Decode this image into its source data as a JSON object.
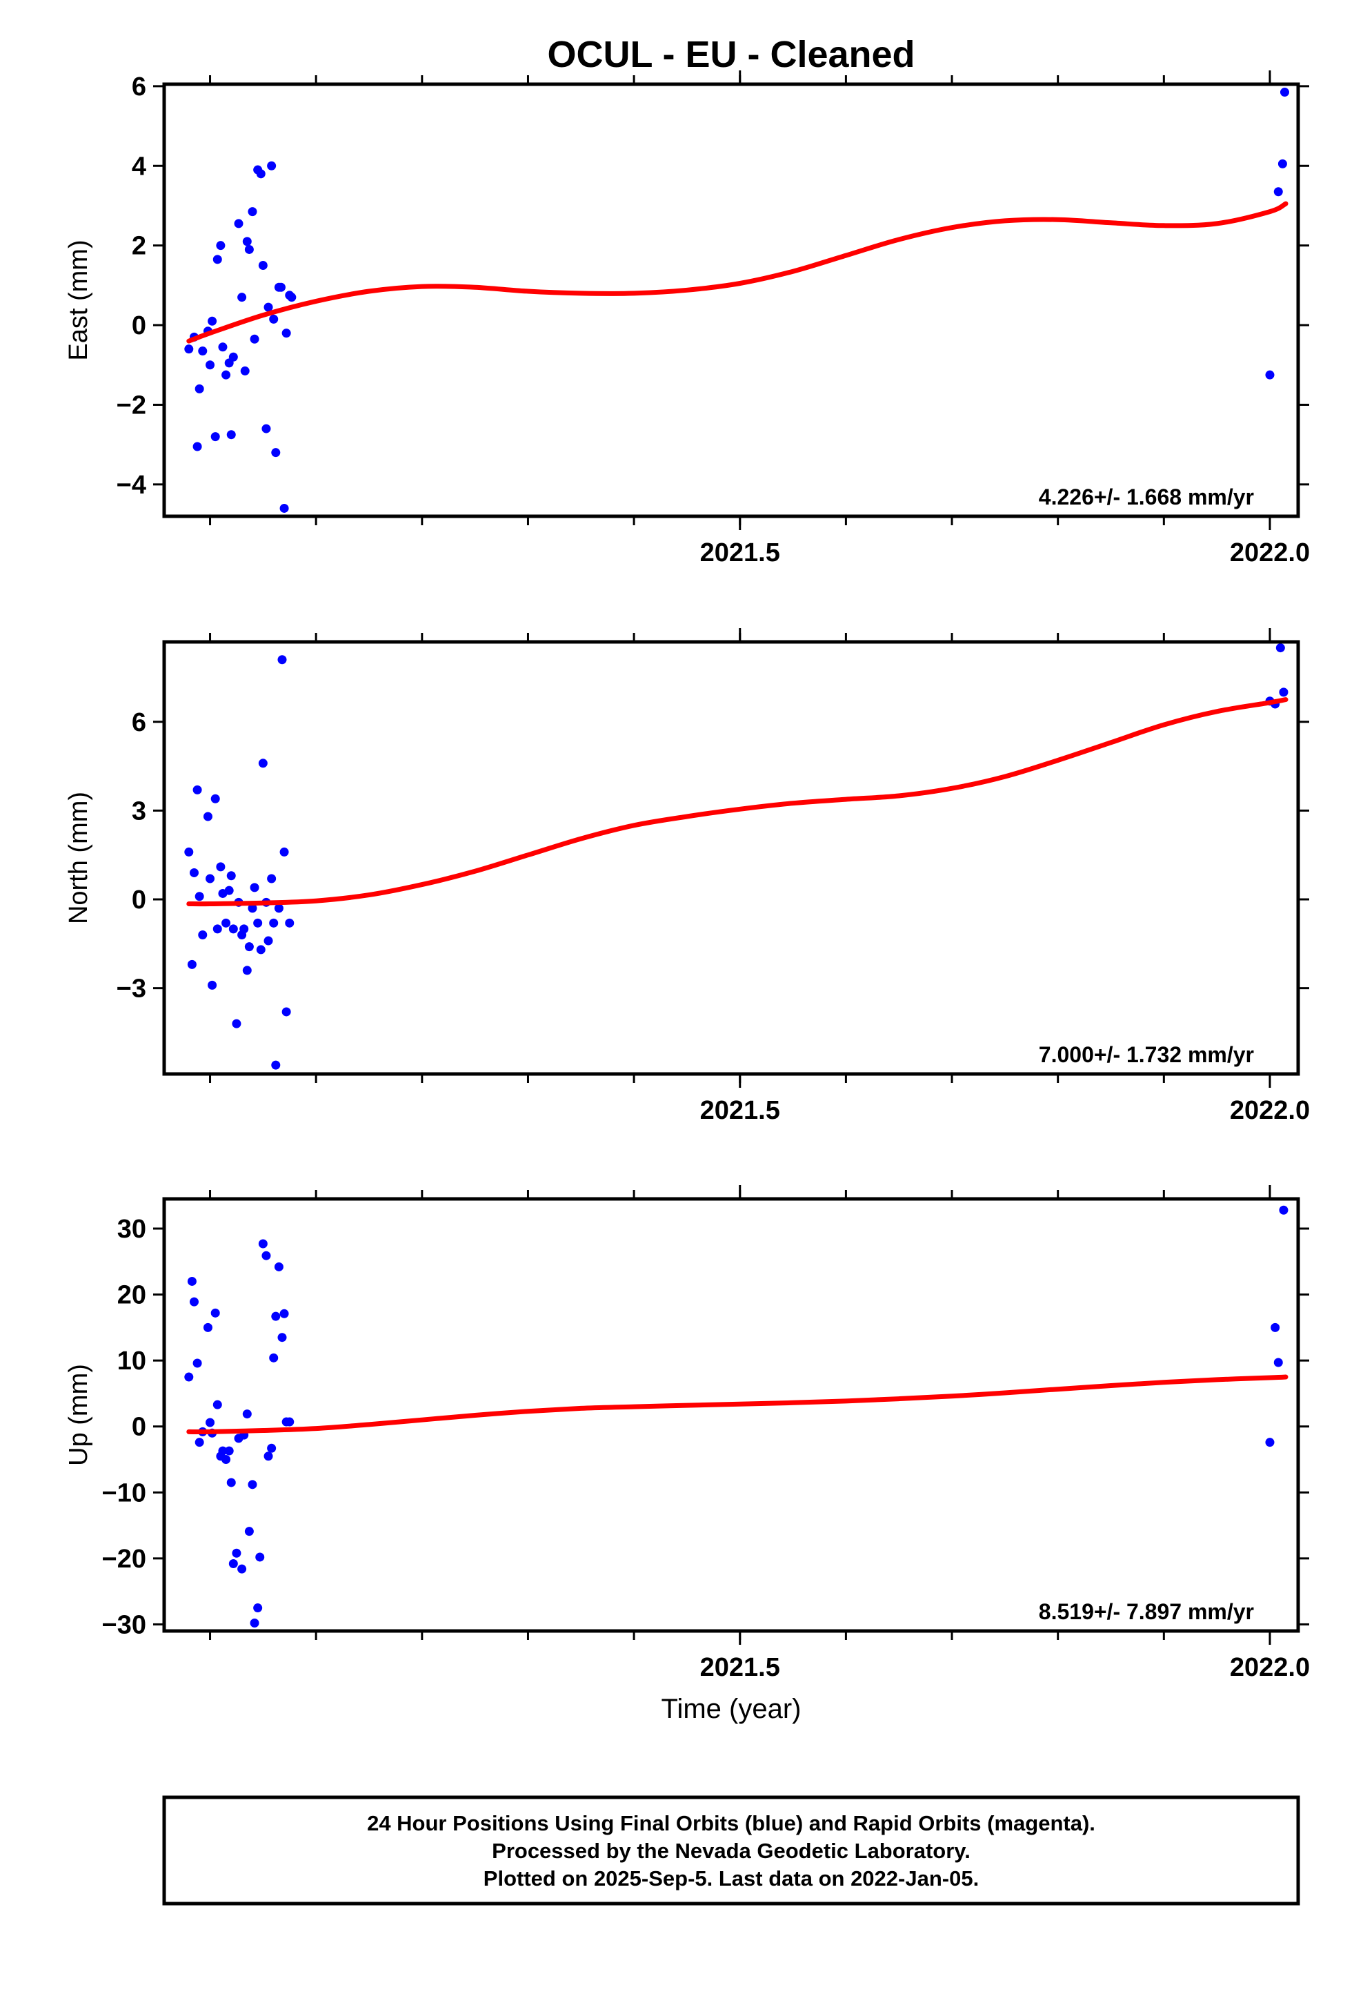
{
  "chart_data": {
    "type": "scatter",
    "title": "OCUL  - EU - Cleaned",
    "xlabel": "Time (year)",
    "xlim": [
      2020.9567,
      2022.0267
    ],
    "x_ticks": [
      2021.5,
      2022.0
    ],
    "x_tick_labels": [
      "2021.5",
      "2022.0"
    ],
    "x_minor_ticks": [
      2021.0,
      2021.1,
      2021.2,
      2021.3,
      2021.4,
      2021.5,
      2021.6,
      2021.7,
      2021.8,
      2021.9,
      2022.0
    ],
    "grid": false,
    "point_color": "#0000ff",
    "fit_color": "#ff0000",
    "panels": [
      {
        "name": "east",
        "ylabel": "East (mm)",
        "ylim": [
          -4.8,
          6.05
        ],
        "y_ticks": [
          -4,
          -2,
          0,
          2,
          4,
          6
        ],
        "y_tick_labels": [
          "−4",
          "−2",
          "0",
          "2",
          "4",
          "6"
        ],
        "rate_label": "4.226+/- 1.668 mm/yr",
        "fit": {
          "x": [
            2020.98,
            2021.0,
            2021.05,
            2021.1,
            2021.15,
            2021.2,
            2021.25,
            2021.3,
            2021.35,
            2021.4,
            2021.45,
            2021.5,
            2021.55,
            2021.6,
            2021.65,
            2021.7,
            2021.75,
            2021.8,
            2021.85,
            2021.9,
            2021.95,
            2022.0,
            2022.015
          ],
          "y": [
            -0.4,
            -0.2,
            0.25,
            0.6,
            0.85,
            0.97,
            0.95,
            0.85,
            0.8,
            0.8,
            0.88,
            1.05,
            1.35,
            1.75,
            2.15,
            2.45,
            2.62,
            2.65,
            2.57,
            2.5,
            2.55,
            2.85,
            3.05
          ]
        },
        "points": {
          "x": [
            2020.98,
            2020.985,
            2020.988,
            2020.99,
            2020.993,
            2020.998,
            2021.0,
            2021.002,
            2021.005,
            2021.007,
            2021.01,
            2021.012,
            2021.015,
            2021.018,
            2021.02,
            2021.022,
            2021.027,
            2021.03,
            2021.033,
            2021.035,
            2021.037,
            2021.04,
            2021.042,
            2021.045,
            2021.048,
            2021.05,
            2021.053,
            2021.055,
            2021.058,
            2021.06,
            2021.062,
            2021.065,
            2021.067,
            2021.07,
            2021.072,
            2021.075,
            2021.077,
            2022.0,
            2022.008,
            2022.012,
            2022.014
          ],
          "y": [
            -0.6,
            -0.3,
            -3.05,
            -1.6,
            -0.65,
            -0.15,
            -1.0,
            0.1,
            -2.8,
            1.65,
            2.0,
            -0.55,
            -1.25,
            -0.95,
            -2.75,
            -0.8,
            2.55,
            0.7,
            -1.15,
            2.1,
            1.9,
            2.85,
            -0.35,
            3.9,
            3.8,
            1.5,
            -2.6,
            0.45,
            4.0,
            0.15,
            -3.2,
            0.95,
            0.95,
            -4.6,
            -0.2,
            0.75,
            0.7,
            -1.25,
            3.35,
            4.05,
            5.85
          ]
        }
      },
      {
        "name": "north",
        "ylabel": "North (mm)",
        "ylim": [
          -5.9,
          8.7
        ],
        "y_ticks": [
          -3,
          0,
          3,
          6
        ],
        "y_tick_labels": [
          "−3",
          "0",
          "3",
          "6"
        ],
        "rate_label": "7.000+/- 1.732 mm/yr",
        "fit": {
          "x": [
            2020.98,
            2021.0,
            2021.05,
            2021.1,
            2021.15,
            2021.2,
            2021.25,
            2021.3,
            2021.35,
            2021.4,
            2021.45,
            2021.5,
            2021.55,
            2021.6,
            2021.65,
            2021.7,
            2021.75,
            2021.8,
            2021.85,
            2021.9,
            2021.95,
            2022.0,
            2022.015
          ],
          "y": [
            -0.15,
            -0.15,
            -0.12,
            -0.05,
            0.15,
            0.5,
            0.95,
            1.5,
            2.05,
            2.5,
            2.8,
            3.05,
            3.25,
            3.38,
            3.5,
            3.75,
            4.15,
            4.7,
            5.3,
            5.9,
            6.35,
            6.65,
            6.75
          ]
        },
        "points": {
          "x": [
            2020.98,
            2020.983,
            2020.985,
            2020.988,
            2020.99,
            2020.993,
            2020.998,
            2021.0,
            2021.002,
            2021.005,
            2021.007,
            2021.01,
            2021.012,
            2021.015,
            2021.018,
            2021.02,
            2021.022,
            2021.025,
            2021.027,
            2021.03,
            2021.032,
            2021.035,
            2021.037,
            2021.04,
            2021.042,
            2021.045,
            2021.048,
            2021.05,
            2021.053,
            2021.055,
            2021.058,
            2021.06,
            2021.062,
            2021.065,
            2021.068,
            2021.07,
            2021.072,
            2021.075,
            2022.0,
            2022.005,
            2022.01,
            2022.013
          ],
          "y": [
            1.6,
            -2.2,
            0.9,
            3.7,
            0.1,
            -1.2,
            2.8,
            0.7,
            -2.9,
            3.4,
            -1.0,
            1.1,
            0.2,
            -0.8,
            0.3,
            0.8,
            -1.0,
            -4.2,
            -0.1,
            -1.2,
            -1.0,
            -2.4,
            -1.6,
            -0.3,
            0.4,
            -0.8,
            -1.7,
            4.6,
            -0.1,
            -1.4,
            0.7,
            -0.8,
            -5.6,
            -0.3,
            8.1,
            1.6,
            -3.8,
            -0.8,
            6.7,
            6.6,
            8.5,
            7.0
          ]
        }
      },
      {
        "name": "up",
        "ylabel": "Up (mm)",
        "ylim": [
          -31,
          34.5
        ],
        "y_ticks": [
          -30,
          -20,
          -10,
          0,
          10,
          20,
          30
        ],
        "y_tick_labels": [
          "−30",
          "−20",
          "−10",
          "0",
          "10",
          "20",
          "30"
        ],
        "rate_label": "8.519+/- 7.897 mm/yr",
        "fit": {
          "x": [
            2020.98,
            2021.0,
            2021.05,
            2021.1,
            2021.15,
            2021.2,
            2021.25,
            2021.3,
            2021.35,
            2021.4,
            2021.45,
            2021.5,
            2021.55,
            2021.6,
            2021.65,
            2021.7,
            2021.75,
            2021.8,
            2021.85,
            2021.9,
            2021.95,
            2022.0,
            2022.015
          ],
          "y": [
            -0.8,
            -0.8,
            -0.6,
            -0.3,
            0.3,
            1.0,
            1.7,
            2.3,
            2.75,
            3.0,
            3.2,
            3.4,
            3.6,
            3.85,
            4.2,
            4.6,
            5.1,
            5.65,
            6.2,
            6.7,
            7.1,
            7.4,
            7.5
          ]
        },
        "points": {
          "x": [
            2020.98,
            2020.983,
            2020.985,
            2020.988,
            2020.99,
            2020.993,
            2020.998,
            2021.0,
            2021.002,
            2021.005,
            2021.007,
            2021.01,
            2021.012,
            2021.015,
            2021.018,
            2021.02,
            2021.022,
            2021.025,
            2021.027,
            2021.03,
            2021.032,
            2021.035,
            2021.037,
            2021.04,
            2021.042,
            2021.045,
            2021.047,
            2021.05,
            2021.053,
            2021.055,
            2021.058,
            2021.06,
            2021.062,
            2021.065,
            2021.068,
            2021.07,
            2021.072,
            2021.075,
            2022.0,
            2022.005,
            2022.008,
            2022.013
          ],
          "y": [
            7.5,
            22.0,
            18.9,
            9.6,
            -2.4,
            -0.8,
            15.0,
            0.6,
            -1.0,
            17.2,
            3.3,
            -4.5,
            -3.7,
            -5.0,
            -3.7,
            -8.5,
            -20.8,
            -19.2,
            -1.8,
            -21.6,
            -1.3,
            1.9,
            -15.9,
            -8.8,
            -29.8,
            -27.5,
            -19.8,
            27.7,
            25.9,
            -4.5,
            -3.3,
            10.4,
            16.7,
            24.2,
            13.5,
            17.1,
            0.7,
            0.7,
            -2.4,
            15.0,
            9.7,
            32.8
          ]
        }
      }
    ]
  },
  "footer": {
    "line1": "24 Hour Positions Using Final Orbits (blue) and Rapid Orbits (magenta).",
    "line2": "Processed by the Nevada Geodetic Laboratory.",
    "line3": "Plotted on 2025-Sep-5. Last data on 2022-Jan-05."
  }
}
